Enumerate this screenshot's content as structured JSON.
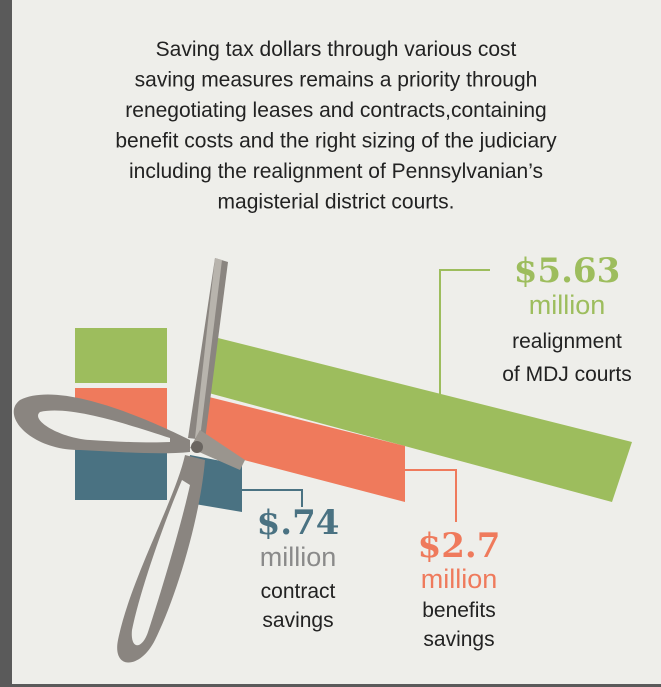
{
  "intro": [
    "Saving tax dollars through various cost",
    "saving measures remains a priority through",
    "renegotiating leases and contracts,containing",
    "benefit costs and the right sizing of the judiciary",
    "including the realignment of Pennsylvanian’s",
    "magisterial district courts."
  ],
  "items": [
    {
      "amount": "$5.63",
      "unit": "million",
      "label": [
        "realignment",
        "of MDJ courts"
      ]
    },
    {
      "amount": "$.74",
      "unit": "million",
      "label": [
        "contract",
        "savings"
      ]
    },
    {
      "amount": "$2.7",
      "unit": "million",
      "label": [
        "benefits",
        "savings"
      ]
    }
  ]
}
